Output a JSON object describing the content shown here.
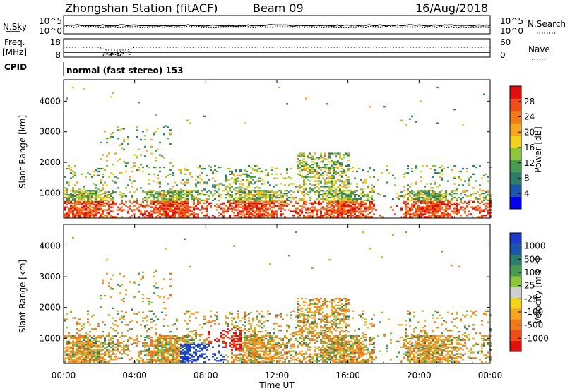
{
  "header": {
    "station": "Zhongshan Station (fitACF)",
    "beam": "Beam 09",
    "date": "16/Aug/2018"
  },
  "panel_labels": {
    "nsky": "N.Sky",
    "nsearch": "N.Search",
    "freq": "Freq.",
    "freq_unit": "[MHz]",
    "nave": "Nave",
    "cpid": "CPID",
    "cpid_value": "normal (fast stereo) 153"
  },
  "noise_axis": {
    "left_top": "10^5",
    "left_bottom": "10^0",
    "right_top": "10^5",
    "right_bottom": "10^0"
  },
  "freq_axis": {
    "left_top": "18",
    "left_bottom": "8",
    "right_top": "60",
    "right_bottom": "0"
  },
  "colors": {
    "power": [
      "#0000ee",
      "#1d55aa",
      "#2f7d6b",
      "#4a9b52",
      "#8cc63f",
      "#f2d21b",
      "#f5a623",
      "#f07a1d",
      "#ee4e19",
      "#e01010"
    ],
    "velocity": [
      "#e01010",
      "#ee4e19",
      "#f07a1d",
      "#f5a623",
      "#f2d21b",
      "#cfcfcf",
      "#8cc63f",
      "#4a9b52",
      "#2f7d6b",
      "#1d55aa",
      "#1e3cc8"
    ]
  },
  "chart_data": [
    {
      "type": "heatmap",
      "name": "power",
      "ylabel": "Slant Range [km]",
      "yticks": [
        "1000",
        "2000",
        "3000",
        "4000"
      ],
      "ylim": [
        180,
        4700
      ],
      "colorbar_label": "Power [dB]",
      "colorbar_ticks": [
        "4",
        "8",
        "12",
        "16",
        "20",
        "24",
        "28"
      ],
      "colorbar_range": [
        0,
        32
      ]
    },
    {
      "type": "heatmap",
      "name": "velocity",
      "ylabel": "Slant Range [km]",
      "yticks": [
        "1000",
        "2000",
        "3000",
        "4000"
      ],
      "ylim": [
        180,
        4700
      ],
      "colorbar_label": "Velocity [m s⁻¹]",
      "colorbar_ticks": [
        "-1000",
        "-500",
        "-100",
        "-25",
        "25",
        "100",
        "500",
        "1000"
      ]
    }
  ],
  "time_axis": {
    "label": "Time UT",
    "ticks": [
      "00:00",
      "04:00",
      "08:00",
      "12:00",
      "16:00",
      "20:00",
      "00:00"
    ],
    "xlim_hours": [
      0,
      24
    ]
  }
}
